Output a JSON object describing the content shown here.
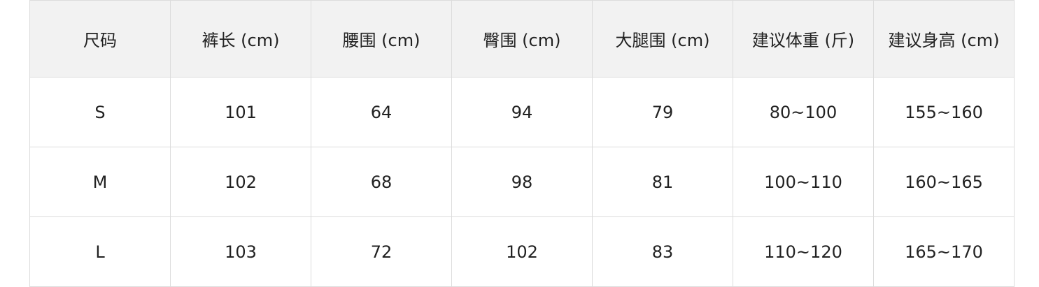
{
  "headers": [
    "尺码",
    "裤长 (cm)",
    "腰围 (cm)",
    "臀围 (cm)",
    "大腿围 (cm)",
    "建议体重 (斤)",
    "建议身高 (cm)"
  ],
  "rows": [
    [
      "S",
      "101",
      "64",
      "94",
      "79",
      "80~100",
      "155~160"
    ],
    [
      "M",
      "102",
      "68",
      "98",
      "81",
      "100~110",
      "160~165"
    ],
    [
      "L",
      "103",
      "72",
      "102",
      "83",
      "110~120",
      "165~170"
    ]
  ],
  "colors": {
    "header_bg": "#f2f2f2",
    "border": "#dcdcdc"
  }
}
